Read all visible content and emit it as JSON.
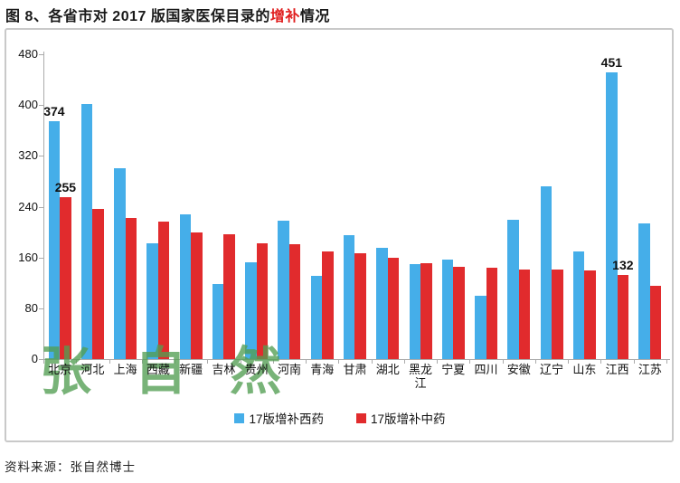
{
  "title": {
    "prefix": "图 8、各省市对 2017 版国家医保目录的",
    "highlight": "增补",
    "suffix": "情况"
  },
  "source_note": "资料来源：张自然博士",
  "watermark": "张自然",
  "colors": {
    "blue_series": "#45AEE9",
    "red_series": "#E12B2D",
    "title_highlight": "#E01F1F",
    "axis_gray": "#ABABAB",
    "frame_border": "#C9C9C9",
    "watermark_green": "#529E52"
  },
  "chart_data": {
    "type": "bar",
    "title": "图 8、各省市对 2017 版国家医保目录的增补情况",
    "categories": [
      "北京",
      "河北",
      "上海",
      "西藏",
      "新疆",
      "吉林",
      "贵州",
      "河南",
      "青海",
      "甘肃",
      "湖北",
      "黑龙江",
      "宁夏",
      "四川",
      "安徽",
      "辽宁",
      "山东",
      "江西",
      "江苏"
    ],
    "series": [
      {
        "key": "xiyao",
        "name": "17版增补西药",
        "color": "#45AEE9",
        "values": [
          374,
          402,
          300,
          183,
          228,
          118,
          152,
          218,
          131,
          195,
          175,
          150,
          157,
          100,
          220,
          272,
          169,
          451,
          213
        ],
        "labeled_indices": [
          0,
          17
        ]
      },
      {
        "key": "zhongyao",
        "name": "17版增补中药",
        "color": "#E12B2D",
        "values": [
          255,
          236,
          222,
          216,
          200,
          196,
          183,
          181,
          170,
          166,
          159,
          151,
          145,
          144,
          141,
          141,
          139,
          132,
          115
        ],
        "labeled_indices": [
          0,
          17
        ]
      }
    ],
    "xlabel": "",
    "ylabel": "",
    "ylim": [
      0,
      480
    ],
    "yticks": [
      0,
      80,
      160,
      240,
      320,
      400,
      480
    ],
    "grid": false,
    "legend_position": "bottom"
  }
}
